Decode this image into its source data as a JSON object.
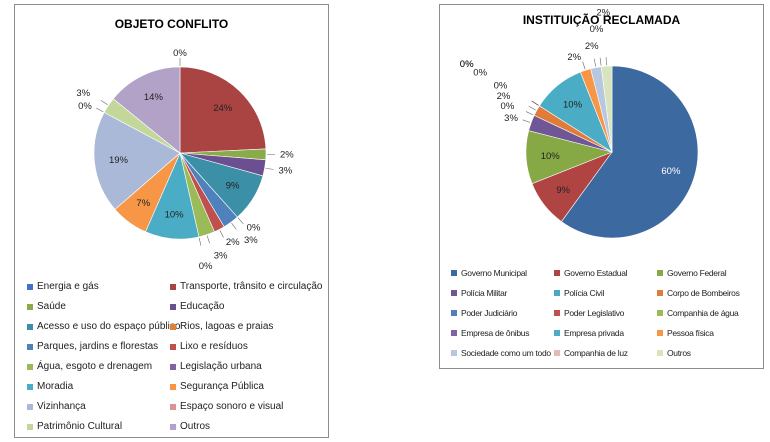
{
  "chart_data": [
    {
      "type": "pie",
      "title": "OBJETO CONFLITO",
      "categories": [
        "Energia e gás",
        "Transporte, trânsito e circulação",
        "Saúde",
        "Educação",
        "Acesso e uso do espaço público",
        "Rios, lagoas e praias",
        "Parques, jardins e florestas",
        "Lixo e resíduos",
        "Água, esgoto e drenagem",
        "Legislação urbana",
        "Moradia",
        "Segurança Pública",
        "Vizinhança",
        "Espaço sonoro e visual",
        "Patrimônio Cultural",
        "Outros"
      ],
      "values": [
        0,
        24,
        2,
        3,
        9,
        0,
        3,
        2,
        3,
        0,
        10,
        7,
        19,
        0,
        3,
        14
      ],
      "data_labels": [
        "0%",
        "24%",
        "2%",
        "3%",
        "9%",
        "0%",
        "3%",
        "2%",
        "3%",
        "0%",
        "10%",
        "7%",
        "19%",
        "0%",
        "3%",
        "14%"
      ],
      "colors": [
        "#4472c4",
        "#a94442",
        "#8aab4a",
        "#6b4f91",
        "#3b8fa6",
        "#e0833a",
        "#4f81bd",
        "#c0504d",
        "#9bbb59",
        "#8064a2",
        "#4bacc6",
        "#f79646",
        "#aab9d8",
        "#d99594",
        "#c4d79b",
        "#b2a2c7"
      ],
      "legend_position": "bottom"
    },
    {
      "type": "pie",
      "title": "INSTITUIÇÃO  RECLAMADA",
      "categories": [
        "Governo Municipal",
        "Governo Estadual",
        "Governo Federal",
        "Polícia Militar",
        "Polícia Civil",
        "Corpo de Bombeiros",
        "Poder Judiciário",
        "Poder Legislativo",
        "Companhia de água",
        "Empresa de ônibus",
        "Empresa privada",
        "Pessoa física",
        "Sociedade como um todo",
        "Companhia de luz",
        "Outros"
      ],
      "values": [
        60,
        9,
        10,
        3,
        0,
        2,
        0,
        0,
        0,
        0,
        10,
        2,
        2,
        0,
        2
      ],
      "data_labels": [
        "60%",
        "9%",
        "10%",
        "3%",
        "0%",
        "2%",
        "0%",
        "0%",
        "0%",
        "0%",
        "10%",
        "2%",
        "2%",
        "0%",
        "2%"
      ],
      "colors": [
        "#3c6aa0",
        "#b04442",
        "#86a845",
        "#6f5796",
        "#47a8c2",
        "#e07b39",
        "#4f81bd",
        "#c0504d",
        "#9bbb59",
        "#8064a2",
        "#4bacc6",
        "#f79646",
        "#b7c7df",
        "#e6b9b8",
        "#d7e4bd"
      ],
      "legend_position": "bottom"
    }
  ]
}
